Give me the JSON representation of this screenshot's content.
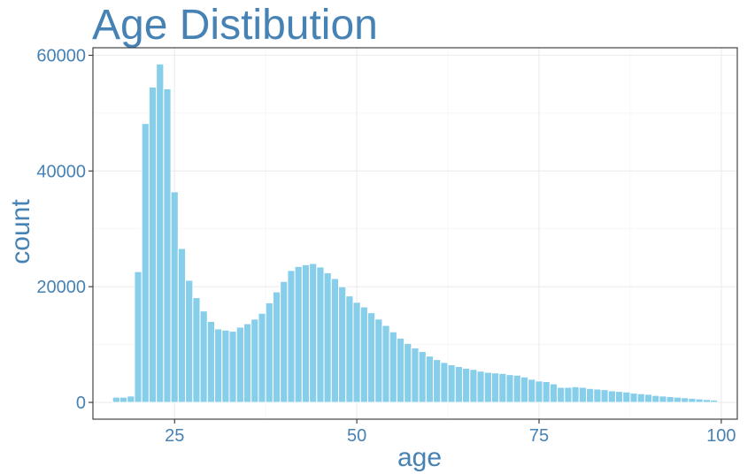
{
  "chart_data": {
    "type": "bar",
    "title": "Age Distibution",
    "xlabel": "age",
    "ylabel": "count",
    "xlim": [
      13.8,
      102.2
    ],
    "ylim": [
      -2900,
      61300
    ],
    "x_ticks": [
      25,
      50,
      75,
      100
    ],
    "x_tick_labels": [
      "25",
      "50",
      "75",
      "100"
    ],
    "y_ticks": [
      0,
      20000,
      40000,
      60000
    ],
    "y_tick_labels": [
      "0",
      "20000",
      "40000",
      "60000"
    ],
    "grid": true,
    "bar_color": "#87CEEB",
    "bar_outline": "#FFFFFF",
    "text_color": "#4682B4",
    "x": [
      17,
      18,
      19,
      20,
      21,
      22,
      23,
      24,
      25,
      26,
      27,
      28,
      29,
      30,
      31,
      32,
      33,
      34,
      35,
      36,
      37,
      38,
      39,
      40,
      41,
      42,
      43,
      44,
      45,
      46,
      47,
      48,
      49,
      50,
      51,
      52,
      53,
      54,
      55,
      56,
      57,
      58,
      59,
      60,
      61,
      62,
      63,
      64,
      65,
      66,
      67,
      68,
      69,
      70,
      71,
      72,
      73,
      74,
      75,
      76,
      77,
      78,
      79,
      80,
      81,
      82,
      83,
      84,
      85,
      86,
      87,
      88,
      89,
      90,
      91,
      92,
      93,
      94,
      95,
      96,
      97,
      98,
      99
    ],
    "values": [
      900,
      900,
      1100,
      22600,
      48200,
      54500,
      58500,
      54200,
      36400,
      26600,
      21100,
      18100,
      15800,
      14000,
      12700,
      12500,
      12300,
      13000,
      13600,
      14400,
      15400,
      17200,
      19100,
      20900,
      22800,
      23500,
      23800,
      24000,
      23400,
      22400,
      21400,
      20000,
      18400,
      17300,
      16500,
      15500,
      14400,
      13300,
      12200,
      11100,
      10200,
      9400,
      8800,
      8000,
      7400,
      6900,
      6500,
      6200,
      5900,
      5700,
      5400,
      5200,
      5100,
      5000,
      4800,
      4700,
      4400,
      4000,
      3700,
      3600,
      3200,
      2600,
      2600,
      2700,
      2600,
      2400,
      2300,
      2200,
      2000,
      1900,
      1800,
      1600,
      1500,
      1400,
      1200,
      1100,
      1000,
      900,
      800,
      700,
      600,
      500,
      400
    ]
  }
}
